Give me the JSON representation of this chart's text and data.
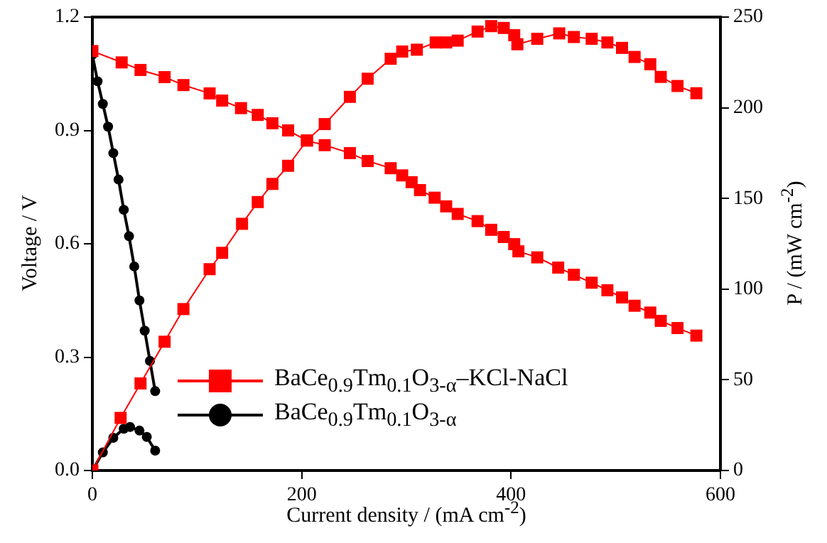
{
  "chart_data": {
    "type": "line",
    "xlabel": "Current density / (mA cm$^{-2}$)",
    "ylabel": "Voltage / V",
    "y2label": "P / (mW cm$^{-2}$)",
    "xlim": [
      0,
      600
    ],
    "xticks": [
      0,
      200,
      400,
      600
    ],
    "ylim": [
      0,
      1.2
    ],
    "yticks": [
      {
        "value": 0,
        "label": "0.0"
      },
      0.3,
      0.6,
      0.9,
      1.2
    ],
    "y2lim": [
      0,
      250
    ],
    "y2ticks": [
      0,
      50,
      100,
      150,
      200,
      250
    ],
    "grid": false,
    "legend": "bottom left",
    "series": [
      {
        "name": "BaCe$_{0.9}$Tm$_{0.1}$O$_{3-α}$–KCl-NaCl",
        "color": "#ff0000",
        "marker": "square",
        "x": [
          0,
          28,
          46,
          69,
          87,
          112,
          124,
          142,
          158,
          172,
          187,
          205,
          222,
          246,
          263,
          285,
          296,
          305,
          313,
          327,
          338,
          349,
          368,
          381,
          393,
          403,
          407,
          425,
          445,
          460,
          477,
          492,
          506,
          518,
          533,
          543,
          559,
          577
        ],
        "values": [
          1.11,
          1.08,
          1.06,
          1.041,
          1.02,
          0.998,
          0.979,
          0.959,
          0.941,
          0.919,
          0.9,
          0.873,
          0.861,
          0.84,
          0.819,
          0.8,
          0.781,
          0.763,
          0.742,
          0.722,
          0.699,
          0.679,
          0.66,
          0.637,
          0.618,
          0.599,
          0.58,
          0.564,
          0.537,
          0.518,
          0.497,
          0.477,
          0.458,
          0.436,
          0.418,
          0.396,
          0.377,
          0.357
        ]
      },
      {
        "color": "#ff0000",
        "marker": "square",
        "axis": "y2",
        "x": [
          0,
          27,
          46,
          69,
          87,
          112,
          124,
          143,
          158,
          172,
          187,
          205,
          222,
          246,
          263,
          285,
          296,
          310,
          328,
          338,
          349,
          368,
          381,
          393,
          403,
          406,
          425,
          446,
          460,
          477,
          492,
          506,
          518,
          533,
          543,
          559,
          577
        ],
        "values": [
          0,
          29,
          48,
          71,
          89,
          111,
          120,
          136,
          148,
          158,
          168,
          182,
          191,
          206,
          216,
          227,
          231,
          232,
          236,
          236,
          237,
          242,
          245,
          244,
          240,
          235,
          238,
          241,
          239,
          238,
          236,
          233,
          228,
          224,
          217,
          212,
          208
        ]
      },
      {
        "name": "BaCe$_{0.9}$Tm$_{0.1}$O$_{3-α}$",
        "color": "#000000",
        "marker": "circle",
        "x": [
          0,
          5,
          10,
          15,
          20,
          25,
          30,
          35,
          40,
          45,
          50,
          55,
          60
        ],
        "values": [
          1.1,
          1.03,
          0.97,
          0.91,
          0.84,
          0.77,
          0.69,
          0.62,
          0.54,
          0.45,
          0.37,
          0.29,
          0.21
        ]
      },
      {
        "color": "#000000",
        "marker": "circle",
        "axis": "y2",
        "x": [
          0,
          10,
          20,
          30,
          36,
          45,
          52,
          60
        ],
        "values": [
          0,
          10,
          18,
          23,
          24,
          22,
          18.5,
          11
        ]
      }
    ]
  }
}
